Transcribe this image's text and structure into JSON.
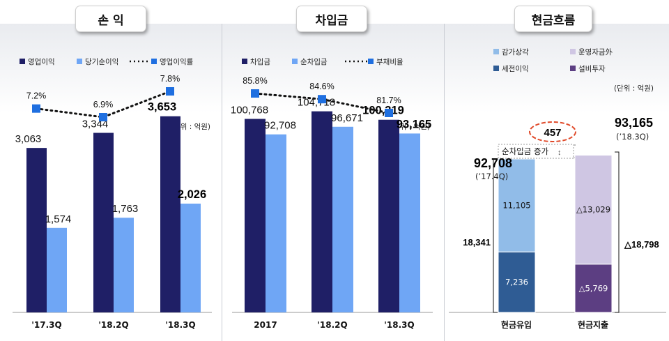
{
  "colors": {
    "dark": "#1f1f66",
    "light": "#6fa6f5",
    "marker": "#1f6fe0",
    "cf_lightblue": "#91bce8",
    "cf_darkblue": "#2f5c94",
    "cf_lavender": "#cfc6e3",
    "cf_purple": "#5c3e82",
    "oval": "#e04a2a"
  },
  "chart_data": [
    {
      "type": "bar",
      "title": "손 익",
      "unit": "(단위 : 억원)",
      "categories": [
        "'17.3Q",
        "'18.2Q",
        "'18.3Q"
      ],
      "series": [
        {
          "name": "영업이익",
          "values": [
            3063,
            3344,
            3653
          ],
          "labels": [
            "3,063",
            "3,344",
            "3,653"
          ]
        },
        {
          "name": "당기순이익",
          "values": [
            1574,
            1763,
            2026
          ],
          "labels": [
            "1,574",
            "1,763",
            "2,026"
          ]
        }
      ],
      "line_series": {
        "name": "영업이익률",
        "values": [
          7.2,
          6.9,
          7.8
        ],
        "labels": [
          "7.2%",
          "6.9%",
          "7.8%"
        ]
      },
      "ylim": [
        0,
        4000
      ]
    },
    {
      "type": "bar",
      "title": "차입금",
      "unit": "(단위 : 억원)",
      "categories": [
        "2017",
        "'18.2Q",
        "'18.3Q"
      ],
      "series": [
        {
          "name": "차입금",
          "values": [
            100768,
            104718,
            100319
          ],
          "labels": [
            "100,768",
            "104,718",
            "100,319"
          ]
        },
        {
          "name": "순차입금",
          "values": [
            92708,
            96671,
            93165
          ],
          "labels": [
            "92,708",
            "96,671",
            "93,165"
          ]
        }
      ],
      "line_series": {
        "name": "부채비율",
        "values": [
          85.8,
          84.6,
          81.7
        ],
        "labels": [
          "85.8%",
          "84.6%",
          "81.7%"
        ]
      },
      "ylim": [
        0,
        130000
      ]
    },
    {
      "type": "bar",
      "title": "현금흐름",
      "unit": "(단위 : 억원)",
      "legend": [
        "감가상각",
        "운영자금外",
        "세전이익",
        "설비투자"
      ],
      "categories": [
        "현금유입",
        "현금지출"
      ],
      "inflow": {
        "total_label": "92,708",
        "total_note": "(’17.4Q)",
        "segments": [
          {
            "name": "세전이익",
            "value": 7236,
            "label": "7,236"
          },
          {
            "name": "감가상각",
            "value": 11105,
            "label": "11,105"
          }
        ],
        "bracket_label": "18,341"
      },
      "outflow": {
        "total_label": "93,165",
        "total_note": "(’18.3Q)",
        "segments": [
          {
            "name": "설비투자",
            "value": -5769,
            "label": "△5,769"
          },
          {
            "name": "운영자금外",
            "value": -13029,
            "label": "△13,029"
          }
        ],
        "bracket_label": "△18,798"
      },
      "net_increase": {
        "label": "순차입금 증가",
        "value": 457,
        "value_label": "457"
      }
    }
  ]
}
